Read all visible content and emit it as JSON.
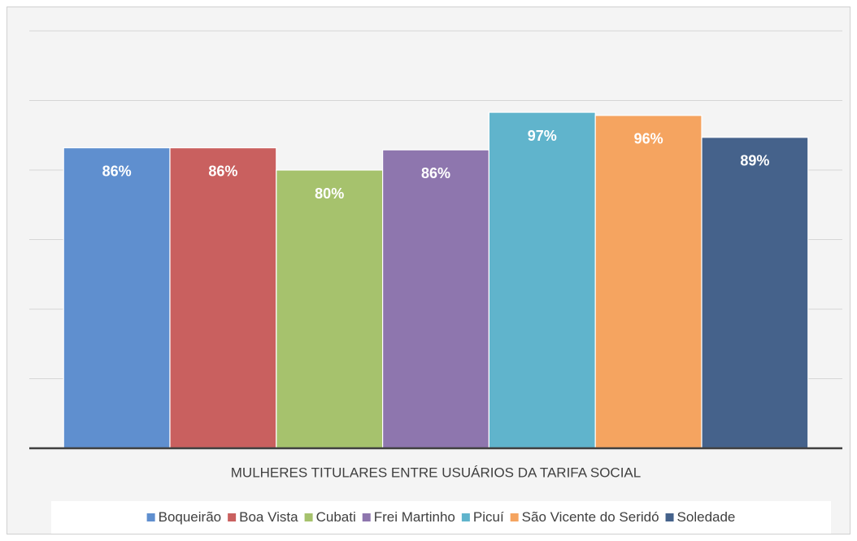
{
  "chart_data": {
    "type": "bar",
    "categories": [
      "MULHERES TITULARES ENTRE USUÁRIOS DA TARIFA SOCIAL"
    ],
    "series": [
      {
        "name": "Boqueirão",
        "color": "#5f8fcf",
        "values": [
          86.4
        ],
        "value_labels": [
          "86%"
        ]
      },
      {
        "name": "Boa Vista",
        "color": "#c9605f",
        "values": [
          86.4
        ],
        "value_labels": [
          "86%"
        ]
      },
      {
        "name": "Cubati",
        "color": "#a6c26d",
        "values": [
          80
        ],
        "value_labels": [
          "80%"
        ]
      },
      {
        "name": "Frei Martinho",
        "color": "#8e76ae",
        "values": [
          85.8
        ],
        "value_labels": [
          "86%"
        ]
      },
      {
        "name": "Picuí",
        "color": "#60b4cc",
        "values": [
          96.6
        ],
        "value_labels": [
          "97%"
        ]
      },
      {
        "name": "São Vicente do Seridó",
        "color": "#f5a460",
        "values": [
          95.7
        ],
        "value_labels": [
          "96%"
        ]
      },
      {
        "name": "Soledade",
        "color": "#45628b",
        "values": [
          89.4
        ],
        "value_labels": [
          "89%"
        ]
      }
    ],
    "ylim": [
      0,
      120
    ],
    "yticks": [
      0,
      20,
      40,
      60,
      80,
      100,
      120
    ],
    "grid": true,
    "legend": "bottom"
  }
}
